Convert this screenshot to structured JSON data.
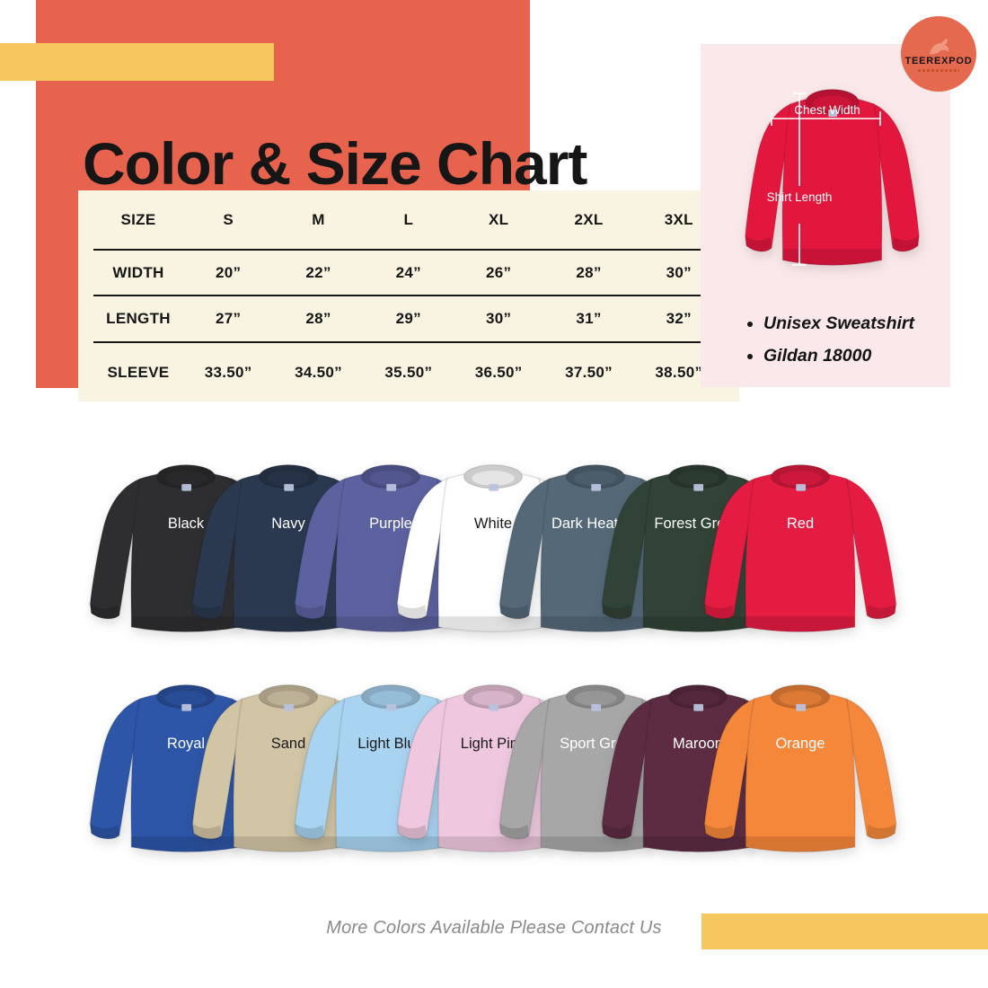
{
  "title": "Color & Size Chart",
  "brand": {
    "name": "TEEREXPOD"
  },
  "size_chart": {
    "header": [
      "SIZE",
      "S",
      "M",
      "L",
      "XL",
      "2XL",
      "3XL"
    ],
    "rows": [
      {
        "label": "WIDTH",
        "values": [
          "20”",
          "22”",
          "24”",
          "26”",
          "28”",
          "30”"
        ]
      },
      {
        "label": "LENGTH",
        "values": [
          "27”",
          "28”",
          "29”",
          "30”",
          "31”",
          "32”"
        ]
      },
      {
        "label": "SLEEVE",
        "values": [
          "33.50”",
          "34.50”",
          "35.50”",
          "36.50”",
          "37.50”",
          "38.50”"
        ]
      }
    ]
  },
  "product": {
    "bullets": [
      "Unisex Sweatshirt",
      "Gildan 18000"
    ],
    "measurements": {
      "chest": "Chest Width",
      "length": "Shirt Length"
    },
    "hero_color": "#E3173E"
  },
  "shirts": {
    "row1": [
      {
        "name": "Black",
        "hex": "#2E2D2F",
        "label_color": "#FFFFFF"
      },
      {
        "name": "Navy",
        "hex": "#2B3950",
        "label_color": "#FFFFFF"
      },
      {
        "name": "Purple",
        "hex": "#5C61A0",
        "label_color": "#FFFFFF"
      },
      {
        "name": "White",
        "hex": "#FFFFFF",
        "label_color": "#1A1A1A"
      },
      {
        "name": "Dark Heather",
        "hex": "#546878",
        "label_color": "#FFFFFF"
      },
      {
        "name": "Forest Green",
        "hex": "#314236",
        "label_color": "#FFFFFF"
      },
      {
        "name": "Red",
        "hex": "#E41C42",
        "label_color": "#FFFFFF"
      }
    ],
    "row2": [
      {
        "name": "Royal",
        "hex": "#2D56A8",
        "label_color": "#FFFFFF"
      },
      {
        "name": "Sand",
        "hex": "#D2C5A6",
        "label_color": "#1A1A1A"
      },
      {
        "name": "Light Blue",
        "hex": "#A8D3F1",
        "label_color": "#1A1A1A"
      },
      {
        "name": "Light Pink",
        "hex": "#EFC8DF",
        "label_color": "#1A1A1A"
      },
      {
        "name": "Sport Grey",
        "hex": "#A7A7A8",
        "label_color": "#FFFFFF"
      },
      {
        "name": "Maroon",
        "hex": "#5E2C42",
        "label_color": "#FFFFFF"
      },
      {
        "name": "Orange",
        "hex": "#F5873B",
        "label_color": "#FFFFFF"
      }
    ]
  },
  "footer": {
    "note": "More Colors Available Please Contact Us"
  },
  "palette": {
    "coral": "#E8634D",
    "yellow": "#F6C75F",
    "cream": "#F8F4E1",
    "pink": "#FAE8EA",
    "ink": "#161616"
  }
}
